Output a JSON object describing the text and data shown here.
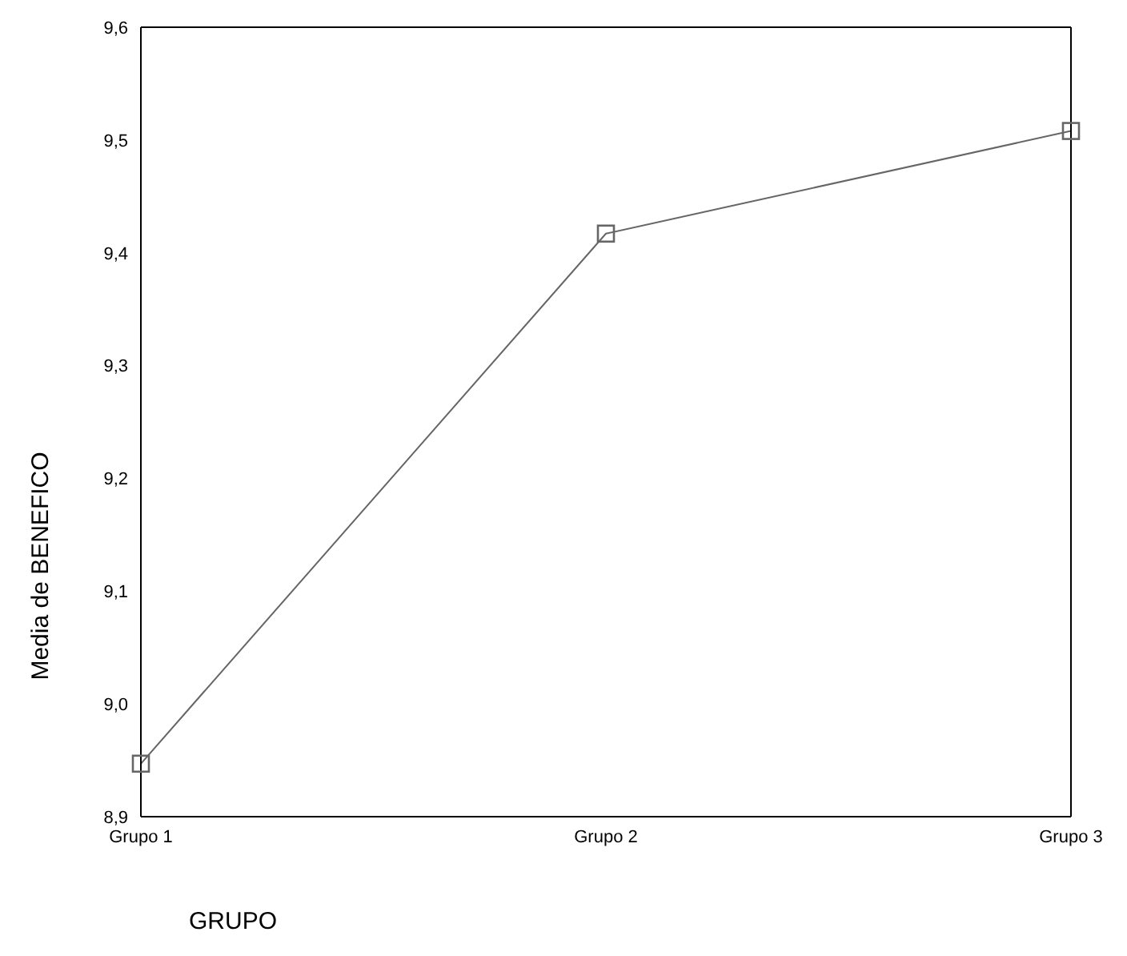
{
  "chart_data": {
    "type": "line",
    "xlabel": "GRUPO",
    "ylabel": "Media de BENEFICO",
    "categories": [
      "Grupo 1",
      "Grupo 2",
      "Grupo 3"
    ],
    "series": [
      {
        "color": "#666666",
        "values": [
          8.947,
          9.417,
          9.508
        ]
      }
    ],
    "ylim": [
      8.9,
      9.6
    ],
    "yticks": [
      {
        "value": 8.9,
        "label": "8,9"
      },
      {
        "value": 9.0,
        "label": "9,0"
      },
      {
        "value": 9.1,
        "label": "9,1"
      },
      {
        "value": 9.2,
        "label": "9,2"
      },
      {
        "value": 9.3,
        "label": "9,3"
      },
      {
        "value": 9.4,
        "label": "9,4"
      },
      {
        "value": 9.5,
        "label": "9,5"
      },
      {
        "value": 9.6,
        "label": "9,6"
      }
    ],
    "grid": false,
    "legend": false,
    "marker": "square",
    "line_style": "solid"
  }
}
